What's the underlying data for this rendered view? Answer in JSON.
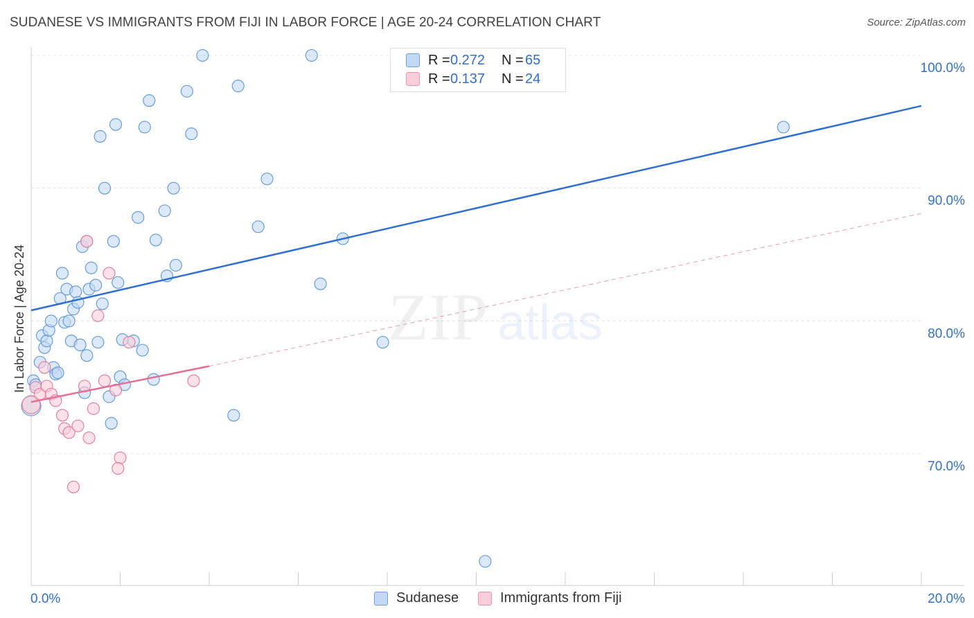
{
  "header": {
    "title": "SUDANESE VS IMMIGRANTS FROM FIJI IN LABOR FORCE | AGE 20-24 CORRELATION CHART",
    "source": "Source: ZipAtlas.com"
  },
  "legend": {
    "rows": [
      {
        "r_label": "R =",
        "r_value": "0.272",
        "n_label": "N =",
        "n_value": "65",
        "color": "#a9c8f0"
      },
      {
        "r_label": "R =",
        "r_value": "0.137",
        "n_label": "N =",
        "n_value": "24",
        "color": "#f7b9cb"
      }
    ]
  },
  "bottom_legend": {
    "sudanese": "Sudanese",
    "fiji": "Immigrants from Fiji"
  },
  "watermark": {
    "zip": "ZIP",
    "atlas": "atlas"
  },
  "chart_data": {
    "type": "scatter",
    "title": "SUDANESE VS IMMIGRANTS FROM FIJI IN LABOR FORCE | AGE 20-24 CORRELATION CHART",
    "xlabel": "",
    "ylabel": "In Labor Force | Age 20-24",
    "xlim": [
      0,
      20
    ],
    "ylim": [
      61.0,
      102.0
    ],
    "x_tick_labels": [
      {
        "value": 0,
        "label": "0.0%"
      },
      {
        "value": 20,
        "label": "20.0%"
      }
    ],
    "y_tick_labels": [
      {
        "value": 100,
        "label": "100.0%"
      },
      {
        "value": 90,
        "label": "90.0%"
      },
      {
        "value": 80,
        "label": "80.0%"
      },
      {
        "value": 70,
        "label": "70.0%"
      }
    ],
    "colors": {
      "sudanese": "#5b96de",
      "sudanese_fill": "#c3d8f4",
      "fiji": "#e8769a",
      "fiji_fill": "#f9cdd9",
      "trend_blue": "#2e6fcf",
      "trend_pink": "#e46e96"
    },
    "series": [
      {
        "name": "Sudanese",
        "points": [
          [
            0.0,
            73.6
          ],
          [
            0.05,
            75.5
          ],
          [
            0.1,
            75.2
          ],
          [
            0.2,
            76.9
          ],
          [
            0.25,
            78.9
          ],
          [
            0.3,
            78.0
          ],
          [
            0.35,
            78.5
          ],
          [
            0.4,
            79.3
          ],
          [
            0.45,
            80.0
          ],
          [
            0.5,
            76.5
          ],
          [
            0.55,
            76.0
          ],
          [
            0.6,
            76.1
          ],
          [
            0.65,
            81.7
          ],
          [
            0.7,
            83.6
          ],
          [
            0.75,
            79.9
          ],
          [
            0.8,
            82.4
          ],
          [
            0.85,
            80.0
          ],
          [
            0.9,
            78.5
          ],
          [
            0.95,
            80.9
          ],
          [
            1.0,
            82.2
          ],
          [
            1.05,
            81.4
          ],
          [
            1.1,
            78.2
          ],
          [
            1.15,
            85.6
          ],
          [
            1.2,
            74.6
          ],
          [
            1.25,
            77.4
          ],
          [
            1.35,
            84.0
          ],
          [
            1.3,
            82.4
          ],
          [
            1.45,
            82.7
          ],
          [
            1.5,
            78.4
          ],
          [
            1.55,
            93.9
          ],
          [
            1.6,
            81.3
          ],
          [
            1.65,
            90.0
          ],
          [
            1.75,
            74.3
          ],
          [
            1.8,
            72.3
          ],
          [
            1.85,
            86.0
          ],
          [
            1.9,
            94.8
          ],
          [
            1.95,
            82.9
          ],
          [
            2.0,
            75.8
          ],
          [
            2.05,
            78.6
          ],
          [
            2.1,
            75.2
          ],
          [
            2.4,
            87.8
          ],
          [
            2.5,
            77.8
          ],
          [
            2.55,
            94.6
          ],
          [
            2.65,
            96.6
          ],
          [
            2.75,
            75.6
          ],
          [
            2.8,
            86.1
          ],
          [
            3.0,
            88.3
          ],
          [
            3.05,
            83.4
          ],
          [
            3.2,
            90.0
          ],
          [
            3.25,
            84.2
          ],
          [
            3.5,
            97.3
          ],
          [
            3.6,
            94.1
          ],
          [
            3.85,
            100.0
          ],
          [
            4.55,
            72.9
          ],
          [
            4.65,
            97.7
          ],
          [
            5.1,
            87.1
          ],
          [
            5.3,
            90.7
          ],
          [
            6.3,
            100.0
          ],
          [
            6.5,
            82.8
          ],
          [
            7.0,
            86.2
          ],
          [
            7.9,
            78.4
          ],
          [
            10.2,
            61.9
          ],
          [
            16.9,
            94.6
          ],
          [
            1.25,
            86.0
          ],
          [
            2.3,
            78.5
          ]
        ]
      },
      {
        "name": "Immigrants from Fiji",
        "points": [
          [
            0.0,
            73.7
          ],
          [
            0.1,
            75.0
          ],
          [
            0.2,
            74.5
          ],
          [
            0.3,
            76.5
          ],
          [
            0.35,
            75.1
          ],
          [
            0.45,
            74.5
          ],
          [
            0.55,
            74.0
          ],
          [
            0.7,
            72.9
          ],
          [
            0.75,
            71.9
          ],
          [
            0.85,
            71.6
          ],
          [
            0.95,
            67.5
          ],
          [
            1.05,
            72.1
          ],
          [
            1.2,
            75.1
          ],
          [
            1.3,
            71.2
          ],
          [
            1.4,
            73.4
          ],
          [
            1.5,
            80.4
          ],
          [
            1.65,
            75.5
          ],
          [
            1.75,
            83.6
          ],
          [
            1.9,
            74.8
          ],
          [
            2.0,
            69.7
          ],
          [
            1.95,
            68.9
          ],
          [
            2.2,
            78.4
          ],
          [
            3.65,
            75.5
          ],
          [
            1.25,
            86.0
          ]
        ]
      }
    ],
    "trend_lines": [
      {
        "name": "Sudanese",
        "x": [
          0,
          20
        ],
        "y": [
          80.8,
          96.2
        ],
        "style": "solid"
      },
      {
        "name": "Immigrants from Fiji",
        "x": [
          0,
          4.0
        ],
        "y": [
          73.9,
          76.6
        ],
        "style": "solid"
      },
      {
        "name": "Immigrants from Fiji (extrapolated)",
        "x": [
          4.0,
          20
        ],
        "y": [
          76.6,
          88.1
        ],
        "style": "dashed"
      }
    ]
  }
}
